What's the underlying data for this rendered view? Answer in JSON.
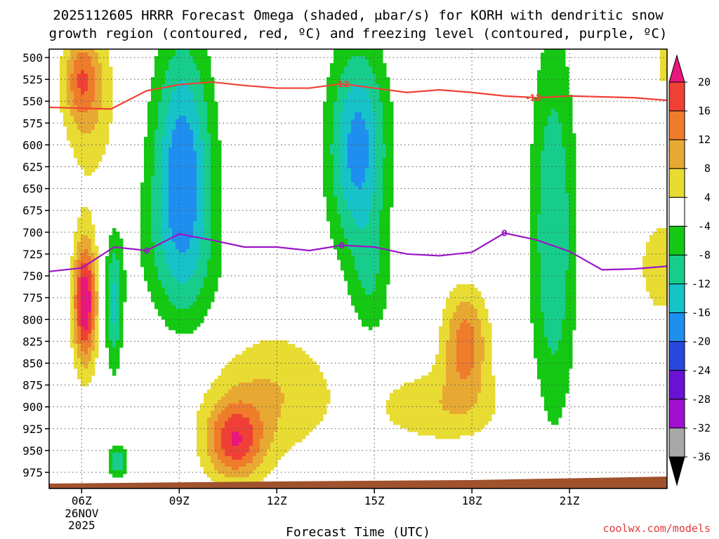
{
  "chart_data": {
    "type": "heatmap",
    "title_lines": [
      "2025112605 HRRR Forecast Omega (shaded, μbar/s) for KORH with dendritic snow",
      "growth region (contoured, red, ºC) and freezing level (contoured, purple, ºC)"
    ],
    "xlabel": "Forecast Time (UTC)",
    "credit": "coolwx.com/models",
    "x_range_hours": [
      5,
      24
    ],
    "x_ticks": [
      {
        "hour": 6,
        "label": "06Z",
        "sublabels": [
          "26NOV",
          "2025"
        ]
      },
      {
        "hour": 9,
        "label": "09Z",
        "sublabels": []
      },
      {
        "hour": 12,
        "label": "12Z",
        "sublabels": []
      },
      {
        "hour": 15,
        "label": "15Z",
        "sublabels": []
      },
      {
        "hour": 18,
        "label": "18Z",
        "sublabels": []
      },
      {
        "hour": 21,
        "label": "21Z",
        "sublabels": []
      }
    ],
    "y_range_mb": [
      500,
      990
    ],
    "y_ticks": [
      500,
      525,
      550,
      575,
      600,
      625,
      650,
      675,
      700,
      725,
      750,
      775,
      800,
      825,
      850,
      875,
      900,
      925,
      950,
      975
    ],
    "grid": true,
    "colorbar": {
      "ticks": [
        20,
        16,
        12,
        8,
        4,
        -4,
        -8,
        -12,
        -16,
        -20,
        -24,
        -28,
        -32,
        -36
      ],
      "bins": [
        {
          "lo": 20,
          "hi": 24,
          "color": "#e8177d"
        },
        {
          "lo": 16,
          "hi": 20,
          "color": "#f04035"
        },
        {
          "lo": 12,
          "hi": 16,
          "color": "#ef7c2b"
        },
        {
          "lo": 8,
          "hi": 12,
          "color": "#e8a933"
        },
        {
          "lo": 4,
          "hi": 8,
          "color": "#e8dc33"
        },
        {
          "lo": -4,
          "hi": 4,
          "color": "#ffffff"
        },
        {
          "lo": -8,
          "hi": -4,
          "color": "#14c814"
        },
        {
          "lo": -12,
          "hi": -8,
          "color": "#17cd8c"
        },
        {
          "lo": -16,
          "hi": -12,
          "color": "#16c3c8"
        },
        {
          "lo": -20,
          "hi": -16,
          "color": "#1e8fef"
        },
        {
          "lo": -24,
          "hi": -20,
          "color": "#2747e0"
        },
        {
          "lo": -28,
          "hi": -24,
          "color": "#6a11d6"
        },
        {
          "lo": -32,
          "hi": -28,
          "color": "#a30fd0"
        },
        {
          "lo": -36,
          "hi": -32,
          "color": "#a8a8a8"
        }
      ],
      "over_color": "#e8177d",
      "under_color": "#000000"
    },
    "omega_centers": [
      {
        "h": 6.1,
        "p": 780,
        "sh": 0.35,
        "sp": 70,
        "a": 24
      },
      {
        "h": 6.0,
        "p": 525,
        "sh": 0.55,
        "sp": 50,
        "a": 12
      },
      {
        "h": 6.3,
        "p": 560,
        "sh": 0.9,
        "sp": 110,
        "a": 6
      },
      {
        "h": 7.0,
        "p": 785,
        "sh": 0.28,
        "sp": 80,
        "a": -13
      },
      {
        "h": 7.1,
        "p": 962,
        "sh": 0.3,
        "sp": 18,
        "a": -12
      },
      {
        "h": 9.1,
        "p": 625,
        "sh": 0.9,
        "sp": 150,
        "a": -18
      },
      {
        "h": 8.9,
        "p": 770,
        "sh": 1.6,
        "sp": 130,
        "a": -6
      },
      {
        "h": 10.7,
        "p": 940,
        "sh": 0.9,
        "sp": 45,
        "a": 17
      },
      {
        "h": 11.8,
        "p": 885,
        "sh": 2.0,
        "sp": 75,
        "a": 8
      },
      {
        "h": 14.5,
        "p": 605,
        "sh": 0.9,
        "sp": 120,
        "a": -18
      },
      {
        "h": 14.9,
        "p": 760,
        "sh": 0.6,
        "sp": 70,
        "a": -6
      },
      {
        "h": 17.8,
        "p": 825,
        "sh": 0.7,
        "sp": 60,
        "a": 14
      },
      {
        "h": 17.0,
        "p": 900,
        "sh": 2.1,
        "sp": 45,
        "a": 7
      },
      {
        "h": 20.5,
        "p": 700,
        "sh": 0.7,
        "sp": 220,
        "a": -12
      },
      {
        "h": 23.8,
        "p": 740,
        "sh": 0.7,
        "sp": 60,
        "a": 7
      },
      {
        "h": 23.9,
        "p": 505,
        "sh": 0.18,
        "sp": 40,
        "a": 6
      },
      {
        "h": 8.5,
        "p": 840,
        "sh": 1.6,
        "sp": 90,
        "a": 5
      }
    ],
    "dendritic_line": {
      "label": "-12",
      "color": "#f04035",
      "hours": [
        5.0,
        6.0,
        6.9,
        8.0,
        9.0,
        10.0,
        11.0,
        12.0,
        13.0,
        14.0,
        15.0,
        16.0,
        17.0,
        18.0,
        19.0,
        20.0,
        21.0,
        22.0,
        23.0,
        24.0
      ],
      "pressures_mb": [
        557,
        558,
        559,
        538,
        531,
        528,
        532,
        535,
        535,
        530,
        535,
        540,
        537,
        540,
        544,
        546,
        544,
        545,
        546,
        549
      ],
      "label_hours": [
        14.0,
        19.9
      ]
    },
    "freezing_line": {
      "label": "0",
      "color": "#9b14c8",
      "hours": [
        5.0,
        6.0,
        7.0,
        8.0,
        9.0,
        10.0,
        11.0,
        12.0,
        13.0,
        14.0,
        15.0,
        16.0,
        17.0,
        18.0,
        19.0,
        20.0,
        21.0,
        22.0,
        23.0,
        24.0
      ],
      "pressures_mb": [
        745,
        741,
        717,
        721,
        702,
        709,
        717,
        717,
        721,
        715,
        717,
        725,
        727,
        723,
        701,
        709,
        722,
        743,
        742,
        739
      ],
      "label_hours": [
        8.0,
        14.0,
        19.0
      ]
    }
  }
}
